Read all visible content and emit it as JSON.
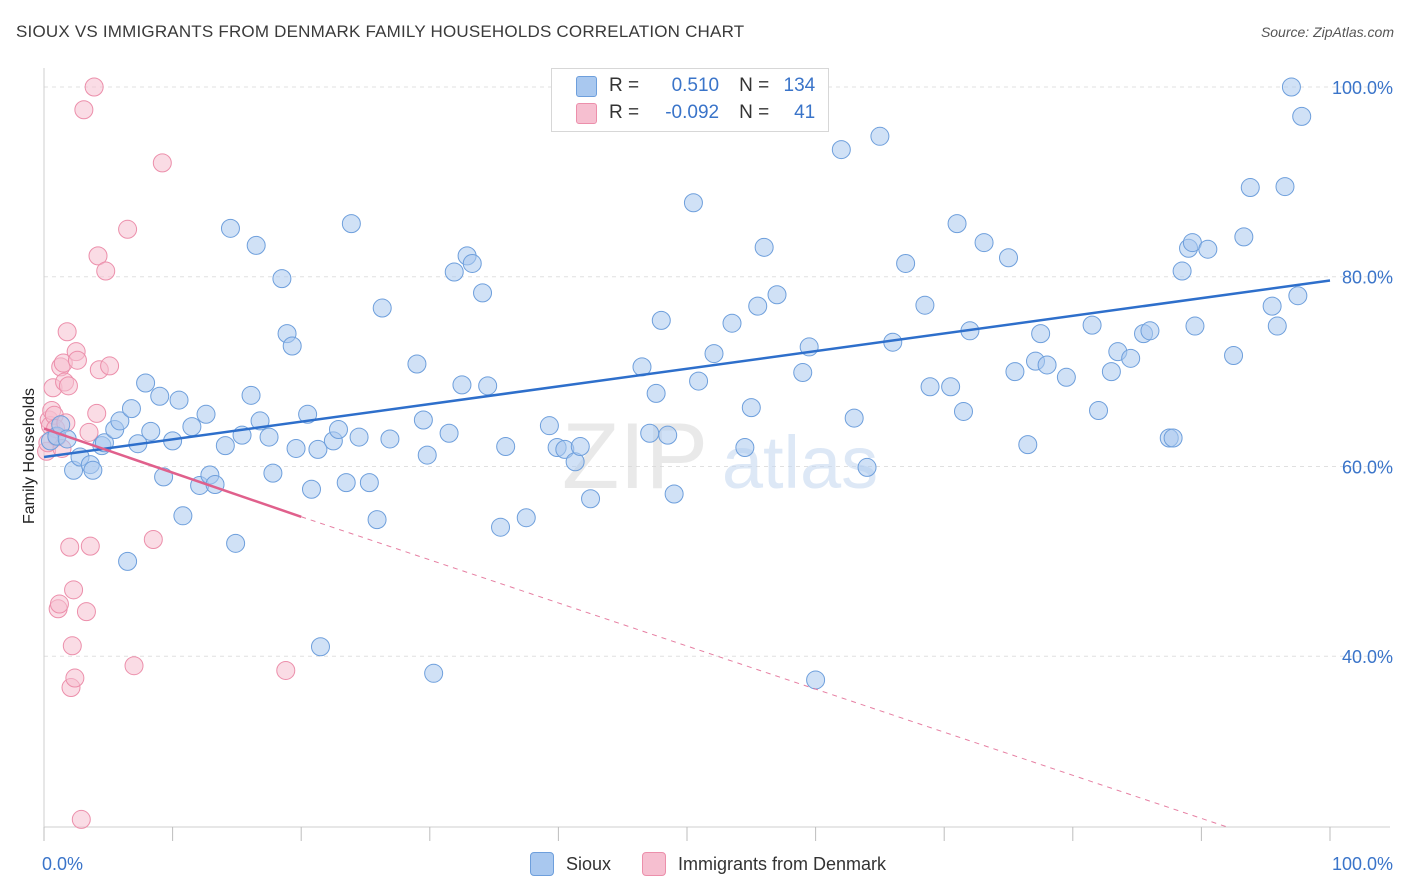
{
  "title": "SIOUX VS IMMIGRANTS FROM DENMARK FAMILY HOUSEHOLDS CORRELATION CHART",
  "source": "Source: ZipAtlas.com",
  "watermark": {
    "zip": "ZIP",
    "atlas": "atlas"
  },
  "colors": {
    "sioux_fill": "#a9c8ef",
    "sioux_stroke": "#6e9fdc",
    "sioux_line": "#2e6fcb",
    "denmark_fill": "#f6bfd0",
    "denmark_stroke": "#ec8fab",
    "denmark_line": "#e0608c",
    "axis_text": "#3a74c9",
    "grid": "#e0e0e0"
  },
  "legend": {
    "rows": [
      {
        "r_label": "R =",
        "r_value": "0.510",
        "n_label": "N =",
        "n_value": "134"
      },
      {
        "r_label": "R =",
        "r_value": "-0.092",
        "n_label": "N =",
        "n_value": "41"
      }
    ]
  },
  "bottom_legend": {
    "sioux": "Sioux",
    "denmark": "Immigrants from Denmark"
  },
  "chart_data": {
    "type": "scatter",
    "ylabel": "Family Households",
    "xlim": [
      0,
      100
    ],
    "ylim": [
      22,
      102
    ],
    "x_ticks": [
      {
        "value": 0,
        "label": "0.0%"
      },
      {
        "value": 100,
        "label": "100.0%"
      }
    ],
    "y_ticks": [
      {
        "value": 40,
        "label": "40.0%"
      },
      {
        "value": 60,
        "label": "60.0%"
      },
      {
        "value": 80,
        "label": "80.0%"
      },
      {
        "value": 100,
        "label": "100.0%"
      }
    ],
    "x_minor_ticks": [
      0,
      10,
      20,
      30,
      40,
      50,
      60,
      70,
      80,
      90,
      100
    ],
    "grid": true,
    "legend_position": "top-center",
    "series": [
      {
        "name": "Sioux",
        "r": 0.51,
        "n": 134,
        "trend": {
          "x": [
            0,
            100
          ],
          "y": [
            61.0,
            79.6
          ],
          "dashed_extension": false
        },
        "points": [
          [
            0.5,
            62.7
          ],
          [
            1.0,
            63.2
          ],
          [
            1.3,
            64.4
          ],
          [
            1.8,
            62.9
          ],
          [
            2.3,
            59.6
          ],
          [
            2.8,
            61.0
          ],
          [
            3.6,
            60.2
          ],
          [
            3.8,
            59.6
          ],
          [
            4.5,
            62.2
          ],
          [
            4.7,
            62.5
          ],
          [
            5.5,
            63.9
          ],
          [
            5.9,
            64.8
          ],
          [
            6.5,
            50.0
          ],
          [
            6.8,
            66.1
          ],
          [
            7.3,
            62.4
          ],
          [
            7.9,
            68.8
          ],
          [
            8.3,
            63.7
          ],
          [
            9.0,
            67.4
          ],
          [
            9.3,
            58.9
          ],
          [
            10.0,
            62.7
          ],
          [
            10.5,
            67.0
          ],
          [
            10.8,
            54.8
          ],
          [
            11.5,
            64.2
          ],
          [
            12.1,
            58.0
          ],
          [
            12.6,
            65.5
          ],
          [
            12.9,
            59.1
          ],
          [
            13.3,
            58.1
          ],
          [
            14.1,
            62.2
          ],
          [
            14.5,
            85.1
          ],
          [
            14.9,
            51.9
          ],
          [
            15.4,
            63.3
          ],
          [
            16.1,
            67.5
          ],
          [
            16.5,
            83.3
          ],
          [
            16.8,
            64.8
          ],
          [
            17.5,
            63.1
          ],
          [
            17.8,
            59.3
          ],
          [
            18.5,
            79.8
          ],
          [
            18.9,
            74.0
          ],
          [
            19.3,
            72.7
          ],
          [
            19.6,
            61.9
          ],
          [
            20.5,
            65.5
          ],
          [
            20.8,
            57.6
          ],
          [
            21.3,
            61.8
          ],
          [
            21.5,
            41.0
          ],
          [
            22.5,
            62.7
          ],
          [
            22.9,
            63.9
          ],
          [
            23.5,
            58.3
          ],
          [
            23.9,
            85.6
          ],
          [
            24.5,
            63.1
          ],
          [
            25.3,
            58.3
          ],
          [
            25.9,
            54.4
          ],
          [
            26.3,
            76.7
          ],
          [
            26.9,
            62.9
          ],
          [
            29.0,
            70.8
          ],
          [
            29.5,
            64.9
          ],
          [
            29.8,
            61.2
          ],
          [
            30.3,
            38.2
          ],
          [
            31.5,
            63.5
          ],
          [
            31.9,
            80.5
          ],
          [
            32.5,
            68.6
          ],
          [
            32.9,
            82.2
          ],
          [
            33.3,
            81.4
          ],
          [
            34.1,
            78.3
          ],
          [
            34.5,
            68.5
          ],
          [
            35.5,
            53.6
          ],
          [
            35.9,
            62.1
          ],
          [
            37.5,
            54.6
          ],
          [
            39.3,
            64.3
          ],
          [
            39.9,
            62.0
          ],
          [
            40.5,
            61.8
          ],
          [
            41.3,
            60.5
          ],
          [
            41.7,
            62.1
          ],
          [
            42.5,
            56.6
          ],
          [
            46.5,
            70.5
          ],
          [
            47.1,
            63.5
          ],
          [
            47.6,
            67.7
          ],
          [
            48.0,
            75.4
          ],
          [
            48.5,
            63.3
          ],
          [
            49.0,
            57.1
          ],
          [
            50.5,
            87.8
          ],
          [
            50.9,
            69.0
          ],
          [
            52.1,
            71.9
          ],
          [
            53.5,
            75.1
          ],
          [
            54.5,
            62.0
          ],
          [
            55.0,
            66.2
          ],
          [
            55.5,
            76.9
          ],
          [
            56.0,
            83.1
          ],
          [
            57.0,
            78.1
          ],
          [
            59.0,
            69.9
          ],
          [
            59.5,
            72.6
          ],
          [
            60.0,
            37.5
          ],
          [
            62.0,
            93.4
          ],
          [
            63.0,
            65.1
          ],
          [
            64.0,
            59.9
          ],
          [
            65.0,
            94.8
          ],
          [
            66.0,
            73.1
          ],
          [
            67.0,
            81.4
          ],
          [
            68.5,
            77.0
          ],
          [
            68.9,
            68.4
          ],
          [
            70.5,
            68.4
          ],
          [
            71.0,
            85.6
          ],
          [
            71.5,
            65.8
          ],
          [
            72.0,
            74.3
          ],
          [
            73.1,
            83.6
          ],
          [
            75.0,
            82.0
          ],
          [
            75.5,
            70.0
          ],
          [
            76.5,
            62.3
          ],
          [
            77.1,
            71.1
          ],
          [
            77.5,
            74.0
          ],
          [
            78.0,
            70.7
          ],
          [
            79.5,
            69.4
          ],
          [
            81.5,
            74.9
          ],
          [
            82.0,
            65.9
          ],
          [
            83.0,
            70.0
          ],
          [
            83.5,
            72.1
          ],
          [
            84.5,
            71.4
          ],
          [
            85.5,
            74.0
          ],
          [
            86.0,
            74.3
          ],
          [
            87.5,
            63.0
          ],
          [
            87.8,
            63.0
          ],
          [
            88.5,
            80.6
          ],
          [
            89.0,
            83.0
          ],
          [
            89.3,
            83.6
          ],
          [
            89.5,
            74.8
          ],
          [
            90.5,
            82.9
          ],
          [
            92.5,
            71.7
          ],
          [
            93.3,
            84.2
          ],
          [
            93.8,
            89.4
          ],
          [
            95.5,
            76.9
          ],
          [
            95.9,
            74.8
          ],
          [
            96.5,
            89.5
          ],
          [
            97.0,
            100.0
          ],
          [
            97.5,
            78.0
          ],
          [
            97.8,
            96.9
          ]
        ]
      },
      {
        "name": "Immigrants from Denmark",
        "r": -0.092,
        "n": 41,
        "trend": {
          "x": [
            0,
            20
          ],
          "y": [
            64.0,
            54.7
          ],
          "dashed_extension": true,
          "dashed_to": [
            92.0,
            22
          ]
        },
        "points": [
          [
            0.2,
            61.6
          ],
          [
            0.3,
            62.5
          ],
          [
            0.4,
            64.9
          ],
          [
            0.5,
            64.3
          ],
          [
            0.6,
            65.9
          ],
          [
            0.7,
            68.3
          ],
          [
            0.8,
            65.4
          ],
          [
            0.9,
            64.0
          ],
          [
            1.0,
            63.1
          ],
          [
            1.1,
            45.0
          ],
          [
            1.2,
            45.5
          ],
          [
            1.3,
            70.5
          ],
          [
            1.4,
            61.9
          ],
          [
            1.5,
            70.9
          ],
          [
            1.6,
            68.9
          ],
          [
            1.7,
            64.6
          ],
          [
            1.8,
            74.2
          ],
          [
            1.9,
            68.5
          ],
          [
            2.0,
            51.5
          ],
          [
            2.1,
            36.7
          ],
          [
            2.2,
            41.1
          ],
          [
            2.3,
            47.0
          ],
          [
            2.4,
            37.7
          ],
          [
            2.5,
            72.1
          ],
          [
            2.6,
            71.2
          ],
          [
            2.9,
            22.8
          ],
          [
            3.1,
            97.6
          ],
          [
            3.3,
            44.7
          ],
          [
            3.5,
            63.6
          ],
          [
            3.6,
            51.6
          ],
          [
            3.9,
            100.0
          ],
          [
            4.1,
            65.6
          ],
          [
            4.2,
            82.2
          ],
          [
            4.3,
            70.2
          ],
          [
            4.8,
            80.6
          ],
          [
            5.1,
            70.6
          ],
          [
            6.5,
            85.0
          ],
          [
            7.0,
            39.0
          ],
          [
            8.5,
            52.3
          ],
          [
            9.2,
            92.0
          ],
          [
            18.8,
            38.5
          ]
        ]
      }
    ]
  }
}
